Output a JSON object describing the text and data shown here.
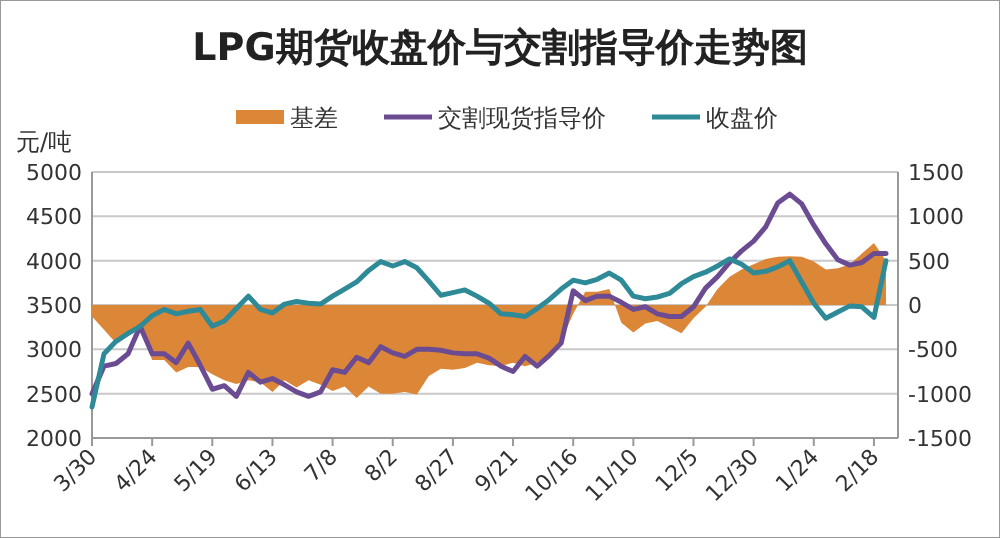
{
  "chart_data": {
    "type": "line",
    "title": "LPG期货收盘价与交割指导价走势图",
    "ylabel": "元/吨",
    "legend": "top",
    "grid": "y",
    "categories": [
      "3/30",
      null,
      null,
      null,
      null,
      "4/24",
      null,
      null,
      null,
      null,
      "5/19",
      null,
      null,
      null,
      null,
      "6/13",
      null,
      null,
      null,
      null,
      "7/8",
      null,
      null,
      null,
      null,
      "8/2",
      null,
      null,
      null,
      null,
      "8/27",
      null,
      null,
      null,
      null,
      "9/21",
      null,
      null,
      null,
      null,
      "10/16",
      null,
      null,
      null,
      null,
      "11/10",
      null,
      null,
      null,
      null,
      "12/5",
      null,
      null,
      null,
      null,
      "12/30",
      null,
      null,
      null,
      null,
      "1/24",
      null,
      null,
      null,
      null,
      "2/18",
      null
    ],
    "ylim": [
      2000,
      5000
    ],
    "yticks": [
      2000,
      2500,
      3000,
      3500,
      4000,
      4500,
      5000
    ],
    "y2lim": [
      -1500,
      1500
    ],
    "y2ticks": [
      -1500,
      -1000,
      -500,
      0,
      500,
      1000,
      1500
    ],
    "series": [
      {
        "name": "基差",
        "type": "area",
        "axis": "y2",
        "color": "#dc8638",
        "values": [
          -130,
          -280,
          -430,
          -330,
          -250,
          -620,
          -620,
          -760,
          -700,
          -700,
          -780,
          -850,
          -890,
          -850,
          -870,
          -980,
          -850,
          -930,
          -850,
          -900,
          -970,
          -920,
          -1050,
          -920,
          -1000,
          -1000,
          -980,
          -1010,
          -800,
          -720,
          -730,
          -710,
          -650,
          -680,
          -690,
          -650,
          -690,
          -650,
          -550,
          -410,
          -100,
          150,
          150,
          180,
          -200,
          -310,
          -210,
          -180,
          -250,
          -320,
          -150,
          -20,
          180,
          320,
          400,
          460,
          520,
          545,
          550,
          545,
          490,
          400,
          415,
          460,
          580,
          700,
          500
        ]
      },
      {
        "name": "交割现货指导价",
        "color": "#6b4c93",
        "values": [
          2500,
          2810,
          2840,
          2950,
          3260,
          2950,
          2950,
          2850,
          3070,
          2820,
          2550,
          2590,
          2470,
          2740,
          2630,
          2670,
          2600,
          2520,
          2470,
          2520,
          2770,
          2740,
          2910,
          2850,
          3030,
          2960,
          2920,
          3000,
          3000,
          2990,
          2960,
          2950,
          2950,
          2900,
          2810,
          2750,
          2920,
          2810,
          2930,
          3070,
          3660,
          3550,
          3600,
          3600,
          3530,
          3450,
          3480,
          3400,
          3370,
          3370,
          3480,
          3690,
          3820,
          3980,
          4110,
          4220,
          4380,
          4650,
          4750,
          4640,
          4400,
          4190,
          4010,
          3950,
          3980,
          4080,
          4080
        ]
      },
      {
        "name": "收盘价",
        "color": "#2f8a98",
        "values": [
          2350,
          2950,
          3090,
          3180,
          3260,
          3380,
          3450,
          3400,
          3430,
          3450,
          3260,
          3320,
          3460,
          3600,
          3450,
          3410,
          3510,
          3540,
          3520,
          3510,
          3600,
          3680,
          3760,
          3890,
          3990,
          3940,
          3990,
          3920,
          3770,
          3610,
          3640,
          3670,
          3600,
          3520,
          3400,
          3390,
          3370,
          3460,
          3560,
          3680,
          3780,
          3750,
          3790,
          3860,
          3780,
          3600,
          3570,
          3590,
          3630,
          3740,
          3820,
          3870,
          3940,
          4020,
          3960,
          3860,
          3880,
          3930,
          4000,
          3760,
          3520,
          3350,
          3420,
          3490,
          3480,
          3360,
          4000
        ]
      }
    ]
  }
}
